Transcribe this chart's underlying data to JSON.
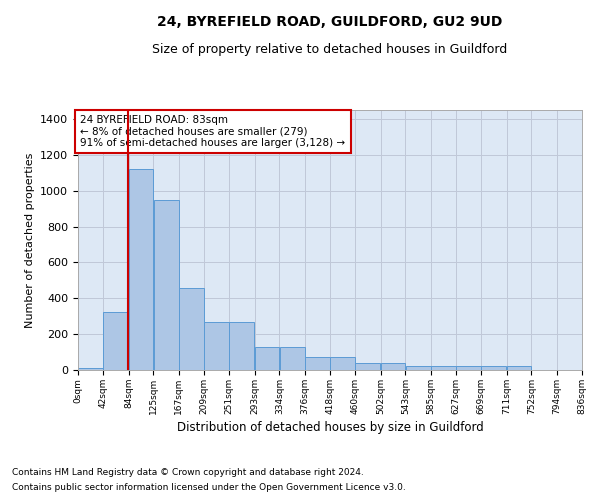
{
  "title1": "24, BYREFIELD ROAD, GUILDFORD, GU2 9UD",
  "title2": "Size of property relative to detached houses in Guildford",
  "xlabel": "Distribution of detached houses by size in Guildford",
  "ylabel": "Number of detached properties",
  "footnote1": "Contains HM Land Registry data © Crown copyright and database right 2024.",
  "footnote2": "Contains public sector information licensed under the Open Government Licence v3.0.",
  "annotation_line1": "24 BYREFIELD ROAD: 83sqm",
  "annotation_line2": "← 8% of detached houses are smaller (279)",
  "annotation_line3": "91% of semi-detached houses are larger (3,128) →",
  "property_value": 83,
  "bar_values": [
    10,
    325,
    1120,
    950,
    460,
    270,
    270,
    130,
    130,
    70,
    70,
    40,
    40,
    25,
    25,
    25,
    20,
    20,
    0,
    0,
    10
  ],
  "bin_edges": [
    0,
    42,
    84,
    125,
    167,
    209,
    251,
    293,
    334,
    376,
    418,
    460,
    502,
    543,
    585,
    627,
    669,
    711,
    752,
    794,
    836
  ],
  "tick_labels": [
    "0sqm",
    "42sqm",
    "84sqm",
    "125sqm",
    "167sqm",
    "209sqm",
    "251sqm",
    "293sqm",
    "334sqm",
    "376sqm",
    "418sqm",
    "460sqm",
    "502sqm",
    "543sqm",
    "585sqm",
    "627sqm",
    "669sqm",
    "711sqm",
    "752sqm",
    "794sqm",
    "836sqm"
  ],
  "ylim": [
    0,
    1450
  ],
  "yticks": [
    0,
    200,
    400,
    600,
    800,
    1000,
    1200,
    1400
  ],
  "bar_color": "#adc6e5",
  "bar_edge_color": "#5b9bd5",
  "highlight_color": "#cc0000",
  "background_color": "#dde8f5",
  "annotation_box_color": "#cc0000",
  "grid_color": "#c0c8d8"
}
